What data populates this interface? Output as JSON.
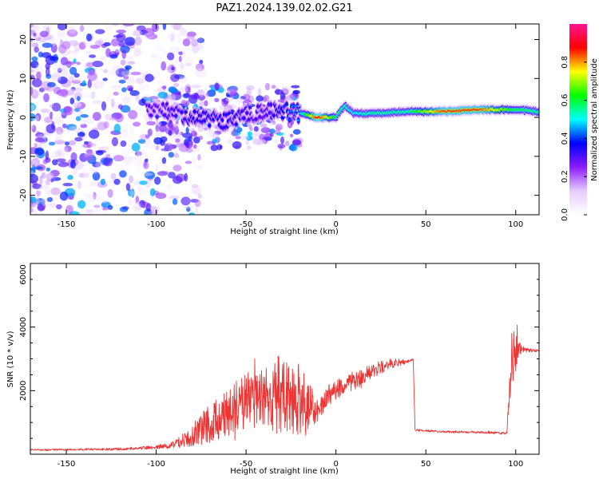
{
  "title": "PAZ1.2024.139.02.02.G21",
  "chart_data": [
    {
      "type": "heatmap",
      "xlabel": "Height of straight line (km)",
      "ylabel": "Frequency (Hz)",
      "xlim": [
        -170,
        113
      ],
      "ylim": [
        -25,
        24
      ],
      "xticks": [
        "-150",
        "-100",
        "-50",
        "0",
        "50",
        "100"
      ],
      "yticks": [
        "-20",
        "-10",
        "0",
        "10",
        "20"
      ],
      "colorbar": {
        "label": "Normalized spectral amplitude",
        "range": [
          0,
          1
        ],
        "ticks": [
          "0.0",
          "0.2",
          "0.4",
          "0.6",
          "0.8"
        ],
        "colors": [
          "#ffffff",
          "#e6ccff",
          "#8c1aff",
          "#0000ff",
          "#00ffff",
          "#00ff00",
          "#ffff00",
          "#ff0000",
          "#ff1493"
        ]
      },
      "ridge": {
        "description": "dominant frequency trace",
        "x": [
          -100,
          -80,
          -60,
          -40,
          -20,
          -10,
          0,
          5,
          10,
          20,
          40,
          60,
          80,
          100,
          113
        ],
        "freq": [
          2,
          0,
          -1,
          2,
          1,
          0,
          0,
          3,
          1,
          1,
          1.5,
          1.5,
          2,
          2,
          1.5
        ],
        "amplitude": [
          0.3,
          0.35,
          0.35,
          0.3,
          0.45,
          0.9,
          0.6,
          0.55,
          0.5,
          0.55,
          0.55,
          0.85,
          0.85,
          0.6,
          0.55
        ]
      }
    },
    {
      "type": "line",
      "xlabel": "Height of straight line (km)",
      "ylabel": "SNR (10 * v/v)",
      "xlim": [
        -170,
        113
      ],
      "ylim": [
        0,
        6000
      ],
      "xticks": [
        "-150",
        "-100",
        "-50",
        "0",
        "50",
        "100"
      ],
      "yticks": [
        "2000",
        "4000",
        "6000"
      ],
      "color": "#ee3333",
      "x": [
        -170,
        -140,
        -120,
        -100,
        -90,
        -80,
        -70,
        -60,
        -50,
        -40,
        -30,
        -20,
        -10,
        -5,
        0,
        10,
        20,
        30,
        40,
        43,
        44,
        60,
        80,
        95,
        98,
        100,
        102,
        105,
        113
      ],
      "y": [
        130,
        140,
        150,
        200,
        280,
        450,
        800,
        1100,
        1400,
        1500,
        1500,
        1350,
        1300,
        1700,
        1950,
        2200,
        2550,
        2800,
        2900,
        2950,
        750,
        700,
        680,
        650,
        2800,
        3400,
        3300,
        3250,
        3250
      ],
      "noise_amplitude": [
        30,
        40,
        50,
        80,
        150,
        400,
        800,
        1000,
        1100,
        1300,
        1600,
        1500,
        500,
        450,
        400,
        350,
        300,
        200,
        80,
        60,
        40,
        40,
        40,
        50,
        1200,
        1400,
        300,
        100,
        50
      ]
    }
  ]
}
